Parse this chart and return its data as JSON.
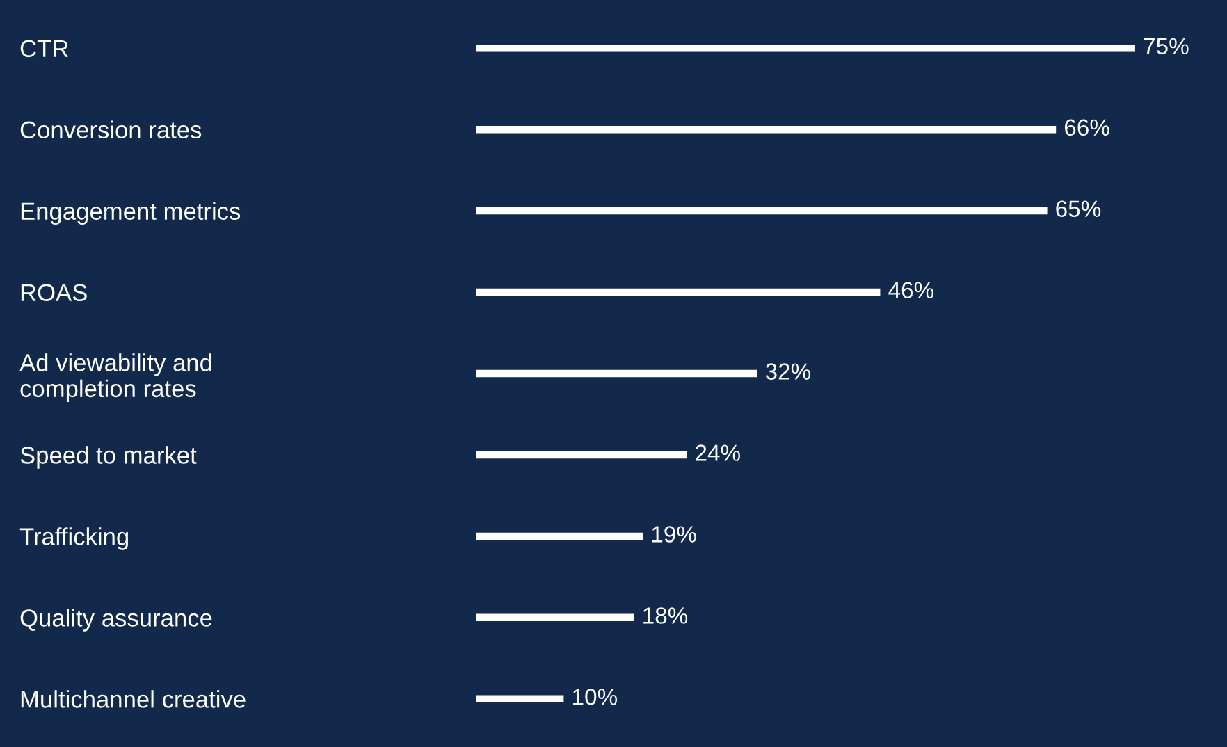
{
  "chart_data": {
    "type": "bar",
    "orientation": "horizontal",
    "categories": [
      "CTR",
      "Conversion rates",
      "Engagement metrics",
      "ROAS",
      "Ad viewability and\ncompletion rates",
      "Speed to market",
      "Trafficking",
      "Quality assurance",
      "Multichannel creative"
    ],
    "values": [
      75,
      66,
      65,
      46,
      32,
      24,
      19,
      18,
      10
    ],
    "value_labels": [
      "75%",
      "66%",
      "65%",
      "46%",
      "32%",
      "24%",
      "19%",
      "18%",
      "10%"
    ],
    "color": "#ffffff",
    "grid": false
  }
}
